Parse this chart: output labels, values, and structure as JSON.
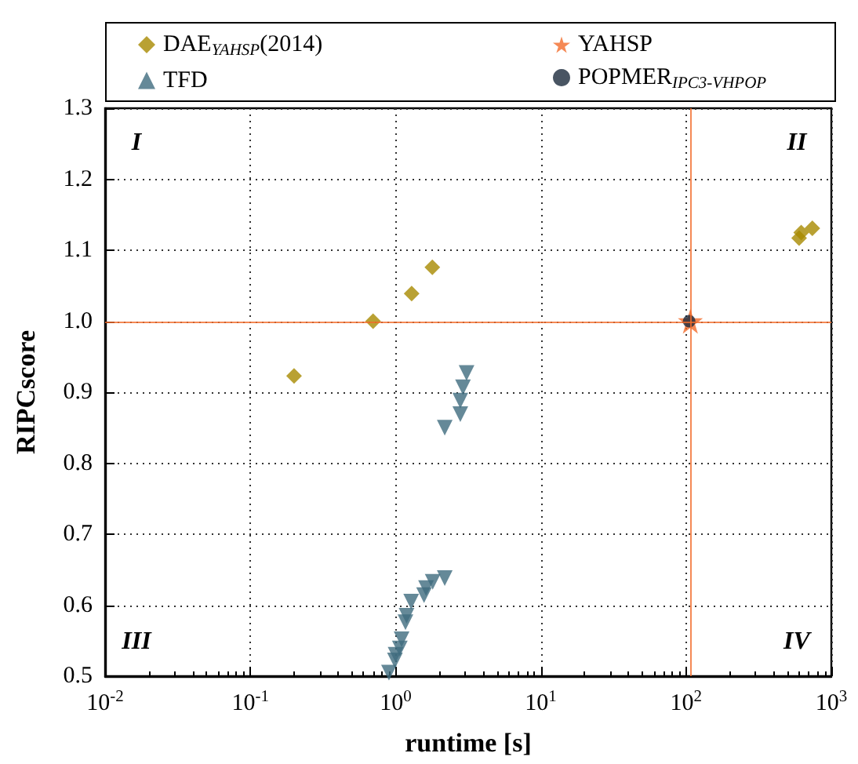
{
  "chart_data": {
    "type": "scatter",
    "xlabel": "runtime [s]",
    "ylabel": "RIPCscore",
    "log": "x",
    "xlim": [
      0.01,
      1000
    ],
    "ylim": [
      0.5,
      1.3
    ],
    "xticks": [
      {
        "value": 0.01,
        "label": "10$^{-2}$"
      },
      {
        "value": 0.1,
        "label": "10$^{-1}$"
      },
      {
        "value": 1,
        "label": "10$^{0}$"
      },
      {
        "value": 10,
        "label": "10$^{1}$"
      },
      {
        "value": 100,
        "label": "10$^{2}$"
      },
      {
        "value": 1000,
        "label": "10$^{3}$"
      }
    ],
    "yticks": [
      0.5,
      0.6,
      0.7,
      0.8,
      0.9,
      {
        "value": 1.0,
        "label": "1.0"
      },
      1.1,
      1.2,
      1.3
    ],
    "grid": true,
    "legend": "top",
    "series": [
      {
        "name": "DAE$_{YAHSP}$(2014)",
        "color": "#a88a00",
        "marker": "diamond",
        "x": [
          0.2,
          0.7,
          1.29,
          1.79,
          600,
          620,
          740
        ],
        "values": [
          0.923,
          1.0,
          1.039,
          1.076,
          1.117,
          1.125,
          1.131
        ]
      },
      {
        "name": "TFD",
        "color": "#3f6b7e",
        "marker": "triangle",
        "x": [
          3.08,
          2.91,
          2.79,
          2.79,
          2.18,
          2.18,
          1.8,
          1.62,
          1.57,
          1.28,
          1.19,
          1.17,
          1.1,
          1.07,
          1.0,
          0.99,
          0.9
        ],
        "values": [
          0.927,
          0.907,
          0.888,
          0.869,
          0.85,
          0.638,
          0.633,
          0.624,
          0.614,
          0.605,
          0.585,
          0.576,
          0.552,
          0.539,
          0.53,
          0.522,
          0.505
        ]
      },
      {
        "name": "YAHSP",
        "color": "#f26b2a",
        "marker": "star",
        "x": [
          107
        ],
        "values": [
          1.0
        ]
      },
      {
        "name": "POPMER$_{IPC3-VHPOP}$",
        "color": "#1c2b3c",
        "marker": "circle",
        "x": [
          105
        ],
        "values": [
          1.0
        ]
      }
    ],
    "ref_lines": [
      {
        "axis": "y",
        "value": 1.0,
        "color": "#f26b2a"
      },
      {
        "axis": "x",
        "value": 107,
        "color": "#f26b2a"
      }
    ],
    "annotations": [
      "I",
      "II",
      "III",
      "IV"
    ]
  }
}
